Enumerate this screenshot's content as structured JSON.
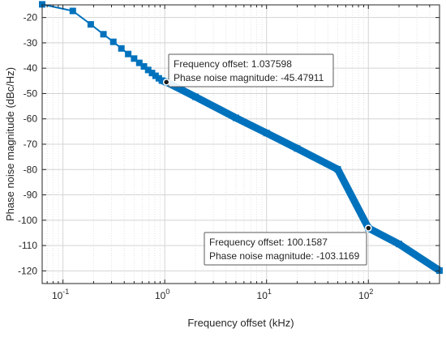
{
  "chart_data": {
    "type": "line",
    "xlabel": "Frequency  offset (kHz)",
    "ylabel": "Phase noise magnitude (dBc/Hz)",
    "xscale": "log",
    "xlim": [
      0.0625,
      500
    ],
    "ylim": [
      -125,
      -15
    ],
    "grid": true,
    "minor_grid": true,
    "x_ticks": [
      {
        "value": 0.1,
        "base": "10",
        "exp": "-1"
      },
      {
        "value": 1,
        "base": "10",
        "exp": "0"
      },
      {
        "value": 10,
        "base": "10",
        "exp": "1"
      },
      {
        "value": 100,
        "base": "10",
        "exp": "2"
      }
    ],
    "y_ticks": [
      -20,
      -30,
      -40,
      -50,
      -60,
      -70,
      -80,
      -90,
      -100,
      -110,
      -120
    ],
    "y_tick_labels": [
      "-20",
      "-30",
      "-40",
      "-50",
      "-60",
      "-70",
      "-80",
      "-90",
      "-100",
      "-110",
      "-120"
    ],
    "series_color": "#0072BD",
    "marker": "square",
    "series": [
      {
        "x": [
          0.0625,
          0.125,
          0.1875,
          0.25,
          0.3125,
          0.375,
          0.4375,
          0.5,
          0.5625,
          0.625,
          0.6875,
          0.75,
          0.8125,
          0.875,
          0.9375,
          1.0376,
          2,
          5,
          10,
          20,
          50,
          100.1587,
          200,
          500
        ],
        "y": [
          -14.8,
          -17.4,
          -22.7,
          -26.6,
          -29.6,
          -32.2,
          -34.4,
          -36.2,
          -37.9,
          -39.3,
          -40.7,
          -41.9,
          -43.0,
          -44.0,
          -44.9,
          -45.48,
          -51.3,
          -59.6,
          -65.6,
          -71.7,
          -79.9,
          -103.1169,
          -109.4,
          -119.9
        ]
      }
    ],
    "datatips": [
      {
        "x": 1.037598,
        "y": -45.47911,
        "line1": "Frequency  offset: 1.037598",
        "line2": "Phase noise magnitude: -45.47911"
      },
      {
        "x": 100.1587,
        "y": -103.1169,
        "line1": "Frequency  offset: 100.1587",
        "line2": "Phase noise magnitude: -103.1169"
      }
    ]
  }
}
